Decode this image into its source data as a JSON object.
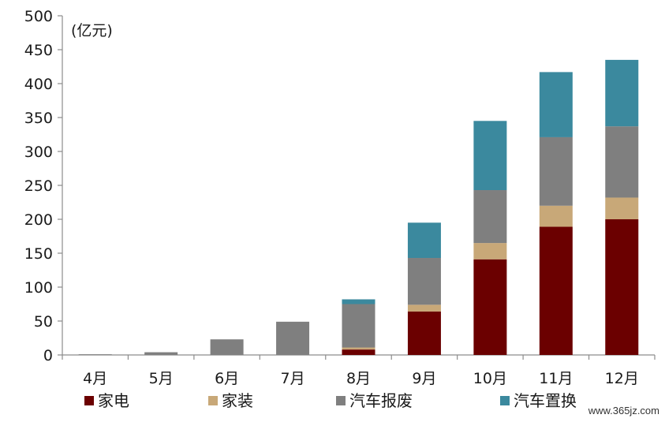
{
  "chart_data": {
    "type": "bar",
    "stacked": true,
    "unit_label": "(亿元)",
    "categories": [
      "4月",
      "5月",
      "6月",
      "7月",
      "8月",
      "9月",
      "10月",
      "11月",
      "12月"
    ],
    "series": [
      {
        "name": "家电",
        "color": "#6b0000",
        "values": [
          0,
          0,
          0,
          0,
          8,
          64,
          141,
          189,
          200
        ]
      },
      {
        "name": "家装",
        "color": "#c8a878",
        "values": [
          0,
          0,
          0,
          0,
          3,
          10,
          24,
          31,
          32
        ]
      },
      {
        "name": "汽车报废",
        "color": "#7f7f7f",
        "values": [
          1,
          4,
          23,
          49,
          64,
          69,
          78,
          101,
          105
        ]
      },
      {
        "name": "汽车置换",
        "color": "#3b899e",
        "values": [
          0,
          0,
          0,
          0,
          7,
          52,
          102,
          96,
          98
        ]
      }
    ],
    "ylim": [
      0,
      500
    ],
    "yticks": [
      0,
      50,
      100,
      150,
      200,
      250,
      300,
      350,
      400,
      450,
      500
    ],
    "grid": false,
    "legend_position": "bottom"
  },
  "watermark": "www.365jz.com"
}
